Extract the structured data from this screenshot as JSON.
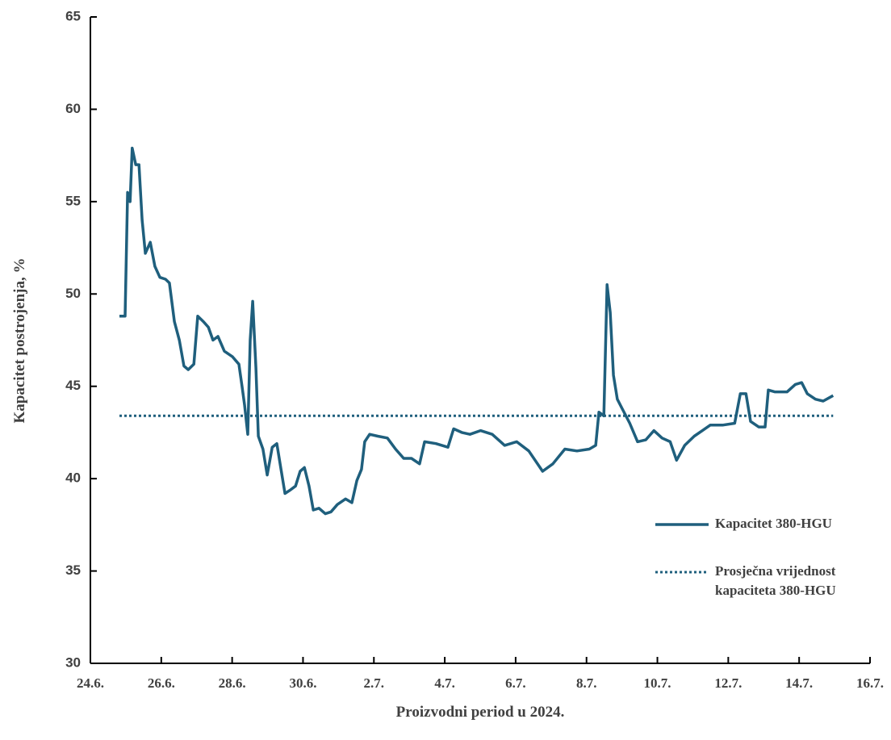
{
  "chart_data": {
    "type": "line",
    "xlabel": "Proizvodni period u 2024.",
    "ylabel": "Kapacitet postrojenja, %",
    "xlim": [
      0,
      22
    ],
    "xticks": [
      {
        "value": 0,
        "label": "24.6."
      },
      {
        "value": 2,
        "label": "26.6."
      },
      {
        "value": 4,
        "label": "28.6."
      },
      {
        "value": 6,
        "label": "30.6."
      },
      {
        "value": 8,
        "label": "2.7."
      },
      {
        "value": 10,
        "label": "4.7."
      },
      {
        "value": 12,
        "label": "6.7."
      },
      {
        "value": 14,
        "label": "8.7."
      },
      {
        "value": 16,
        "label": "10.7."
      },
      {
        "value": 18,
        "label": "12.7."
      },
      {
        "value": 20,
        "label": "14.7."
      },
      {
        "value": 22,
        "label": "16.7."
      }
    ],
    "ylim": [
      30,
      65
    ],
    "yticks": [
      30,
      35,
      40,
      45,
      50,
      55,
      60,
      65
    ],
    "series": [
      {
        "name": "Kapacitet 380-HGU",
        "color": "#1f5f7d",
        "style": "solid",
        "x": [
          0.82,
          0.98,
          1.05,
          1.12,
          1.18,
          1.28,
          1.37,
          1.46,
          1.55,
          1.69,
          1.82,
          1.96,
          2.12,
          2.23,
          2.37,
          2.51,
          2.64,
          2.76,
          2.92,
          3.03,
          3.19,
          3.33,
          3.46,
          3.6,
          3.78,
          4.01,
          4.19,
          4.28,
          4.35,
          4.44,
          4.51,
          4.58,
          4.67,
          4.74,
          4.87,
          4.99,
          5.13,
          5.26,
          5.38,
          5.49,
          5.65,
          5.79,
          5.92,
          6.04,
          6.17,
          6.29,
          6.45,
          6.63,
          6.79,
          6.97,
          7.2,
          7.38,
          7.52,
          7.65,
          7.74,
          7.88,
          8.11,
          8.38,
          8.61,
          8.84,
          9.06,
          9.29,
          9.43,
          9.75,
          10.09,
          10.25,
          10.48,
          10.71,
          11.01,
          11.34,
          11.69,
          12.03,
          12.37,
          12.76,
          13.05,
          13.39,
          13.73,
          14.08,
          14.26,
          14.35,
          14.49,
          14.58,
          14.67,
          14.76,
          14.87,
          15.03,
          15.22,
          15.44,
          15.67,
          15.9,
          16.13,
          16.36,
          16.54,
          16.77,
          17.04,
          17.27,
          17.49,
          17.84,
          18.18,
          18.34,
          18.5,
          18.63,
          18.86,
          19.04,
          19.13,
          19.31,
          19.66,
          19.89,
          20.07,
          20.23,
          20.46,
          20.68,
          20.96
        ],
        "values": [
          48.8,
          48.8,
          55.5,
          55.0,
          57.9,
          57.0,
          57.0,
          54.0,
          52.2,
          52.8,
          51.5,
          50.9,
          50.8,
          50.6,
          48.5,
          47.5,
          46.1,
          45.9,
          46.2,
          48.8,
          48.5,
          48.2,
          47.5,
          47.7,
          46.9,
          46.6,
          46.2,
          45.0,
          44.0,
          42.4,
          47.5,
          49.6,
          46.0,
          42.3,
          41.6,
          40.2,
          41.7,
          41.9,
          40.5,
          39.2,
          39.4,
          39.6,
          40.4,
          40.6,
          39.6,
          38.3,
          38.4,
          38.1,
          38.2,
          38.6,
          38.9,
          38.7,
          39.9,
          40.5,
          42.0,
          42.4,
          42.3,
          42.2,
          41.6,
          41.1,
          41.1,
          40.8,
          42.0,
          41.9,
          41.7,
          42.7,
          42.5,
          42.4,
          42.6,
          42.4,
          41.8,
          42.0,
          41.5,
          40.4,
          40.8,
          41.6,
          41.5,
          41.6,
          41.8,
          43.6,
          43.4,
          50.5,
          49.0,
          45.6,
          44.3,
          43.7,
          43.0,
          42.0,
          42.1,
          42.6,
          42.2,
          42.0,
          41.0,
          41.8,
          42.3,
          42.6,
          42.9,
          42.9,
          43.0,
          44.6,
          44.6,
          43.1,
          42.8,
          42.8,
          44.8,
          44.7,
          44.7,
          45.1,
          45.2,
          44.6,
          44.3,
          44.2,
          44.5
        ]
      },
      {
        "name": "Prosječna vrijednost kapaciteta 380-HGU",
        "color": "#1f5f7d",
        "style": "dotted",
        "x": [
          0.82,
          20.96
        ],
        "values": [
          43.4,
          43.4
        ]
      }
    ]
  }
}
